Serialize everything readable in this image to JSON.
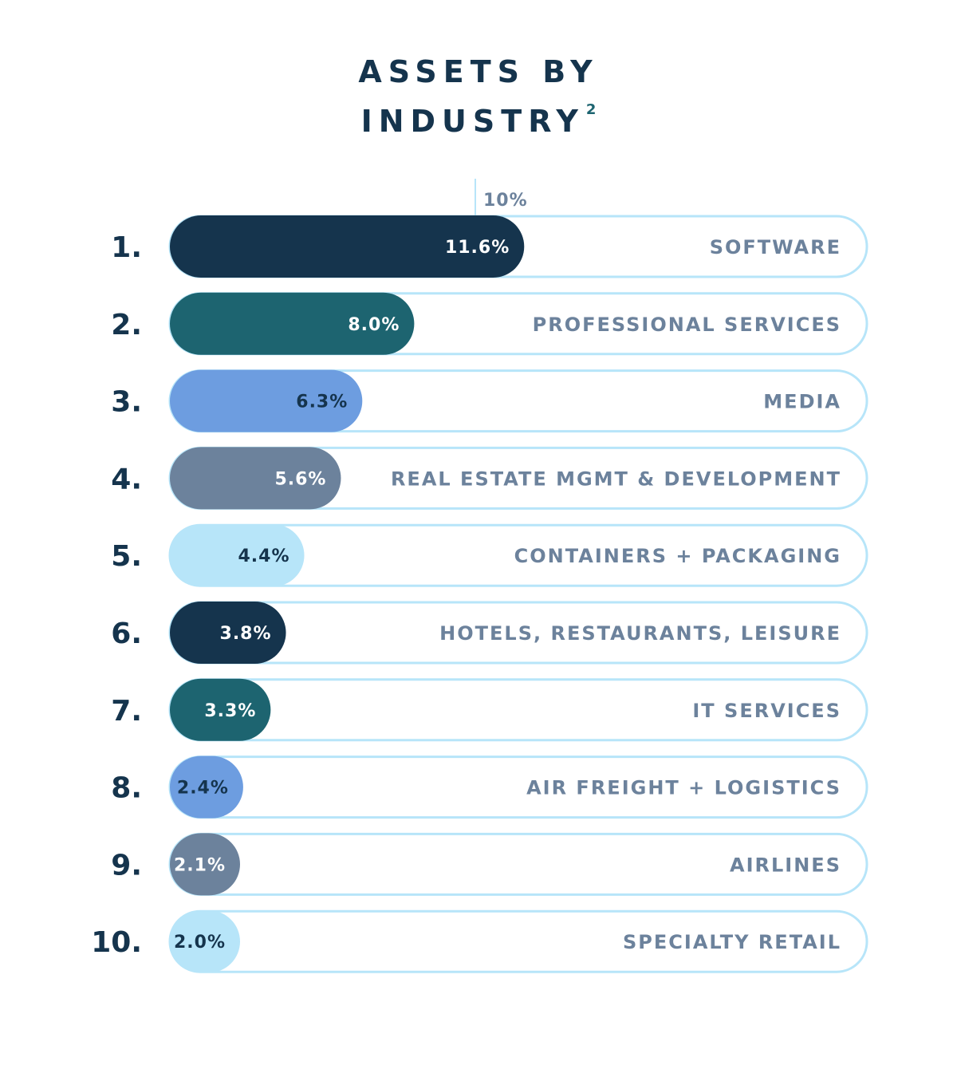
{
  "title": {
    "line1": "ASSETS BY",
    "line2": "INDUSTRY",
    "footnote": "2"
  },
  "chart_data": {
    "type": "bar",
    "orientation": "horizontal",
    "title": "ASSETS BY INDUSTRY",
    "reference_line": {
      "value": 10,
      "label": "10%"
    },
    "categories": [
      "SOFTWARE",
      "PROFESSIONAL SERVICES",
      "MEDIA",
      "REAL ESTATE MGMT & DEVELOPMENT",
      "CONTAINERS + PACKAGING",
      "HOTELS, RESTAURANTS, LEISURE",
      "IT SERVICES",
      "AIR FREIGHT + LOGISTICS",
      "AIRLINES",
      "SPECIALTY RETAIL"
    ],
    "ranks": [
      "1.",
      "2.",
      "3.",
      "4.",
      "5.",
      "6.",
      "7.",
      "8.",
      "9.",
      "10."
    ],
    "values": [
      11.6,
      8.0,
      6.3,
      5.6,
      4.4,
      3.8,
      3.3,
      2.4,
      2.1,
      2.0
    ],
    "value_labels": [
      "11.6%",
      "8.0%",
      "6.3%",
      "5.6%",
      "4.4%",
      "3.8%",
      "3.3%",
      "2.4%",
      "2.1%",
      "2.0%"
    ],
    "bar_colors": [
      "#15344d",
      "#1d6470",
      "#6d9de0",
      "#6c829c",
      "#b7e5f9",
      "#15344d",
      "#1d6470",
      "#6d9de0",
      "#6c829c",
      "#b7e5f9"
    ],
    "label_colors": [
      "#ffffff",
      "#ffffff",
      "#15344d",
      "#ffffff",
      "#15344d",
      "#ffffff",
      "#ffffff",
      "#15344d",
      "#ffffff",
      "#15344d"
    ]
  },
  "colors": {
    "title": "#15344d",
    "footnote": "#1d6470",
    "track_stroke": "#b7e5f9",
    "category_text": "#6c829c",
    "rank_text": "#15344d",
    "reference_line": "#b7e5f9"
  }
}
